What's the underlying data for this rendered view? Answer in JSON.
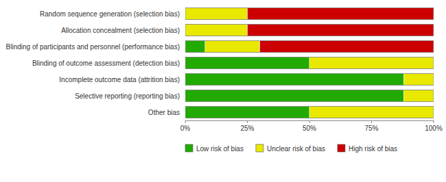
{
  "chart_data": {
    "type": "bar",
    "orientation": "horizontal",
    "stacked": true,
    "categories": [
      "Random sequence generation (selection bias)",
      "Allocation concealment (selection bias)",
      "Blinding of participants and personnel (performance bias)",
      "Blinding of outcome assessment (detection bias)",
      "Incomplete outcome data (attrition bias)",
      "Selective reporting (reporting bias)",
      "Other bias"
    ],
    "series": [
      {
        "name": "Low risk of bias",
        "color": "#22aa00",
        "values": [
          0,
          0,
          8,
          50,
          88,
          88,
          50
        ]
      },
      {
        "name": "Unclear risk of bias",
        "color": "#e8e800",
        "values": [
          25,
          25,
          22,
          50,
          12,
          12,
          50
        ]
      },
      {
        "name": "High risk of bias",
        "color": "#cc0000",
        "values": [
          75,
          75,
          70,
          0,
          0,
          0,
          0
        ]
      }
    ],
    "xlim": [
      0,
      100
    ],
    "xticks": [
      {
        "value": 0,
        "label": "0%"
      },
      {
        "value": 25,
        "label": "25%"
      },
      {
        "value": 50,
        "label": "50%"
      },
      {
        "value": 75,
        "label": "75%"
      },
      {
        "value": 100,
        "label": "100%"
      }
    ],
    "grid": false,
    "legend": "bottom"
  }
}
